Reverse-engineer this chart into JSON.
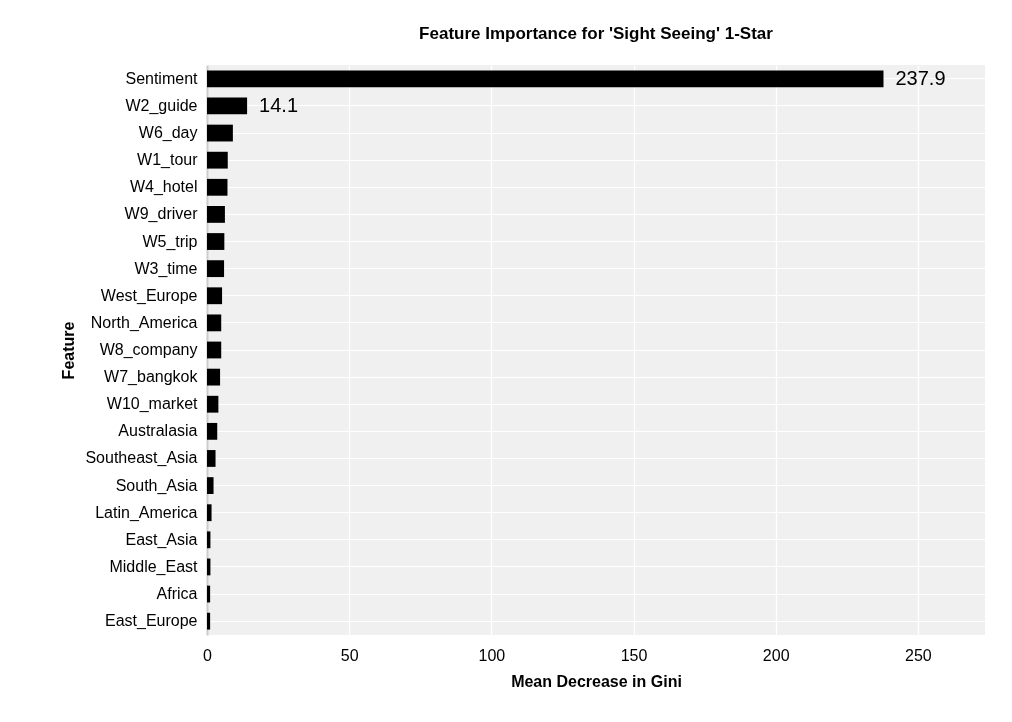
{
  "chart_data": {
    "type": "bar",
    "orientation": "horizontal",
    "title": "Feature Importance for 'Sight Seeing' 1-Star",
    "xlabel": "Mean Decrease in Gini",
    "ylabel": "Feature",
    "categories": [
      "Sentiment",
      "W2_guide",
      "W6_day",
      "W1_tour",
      "W4_hotel",
      "W9_driver",
      "W5_trip",
      "W3_time",
      "West_Europe",
      "North_America",
      "W8_company",
      "W7_bangkok",
      "W10_market",
      "Australasia",
      "Southeast_Asia",
      "South_Asia",
      "Latin_America",
      "East_Asia",
      "Middle_East",
      "Africa",
      "East_Europe"
    ],
    "values": [
      237.9,
      14.1,
      9.1,
      7.3,
      7.2,
      6.3,
      6.1,
      6.0,
      5.3,
      5.0,
      5.0,
      4.6,
      4.0,
      3.6,
      3.0,
      2.3,
      1.6,
      1.2,
      1.2,
      1.1,
      1.1
    ],
    "value_labels": [
      "237.9",
      "14.1",
      null,
      null,
      null,
      null,
      null,
      null,
      null,
      null,
      null,
      null,
      null,
      null,
      null,
      null,
      null,
      null,
      null,
      null,
      null
    ],
    "color": "#000000",
    "xlim": [
      0,
      273.6
    ],
    "xticks": [
      0,
      50,
      100,
      150,
      200,
      250
    ],
    "grid": true
  }
}
